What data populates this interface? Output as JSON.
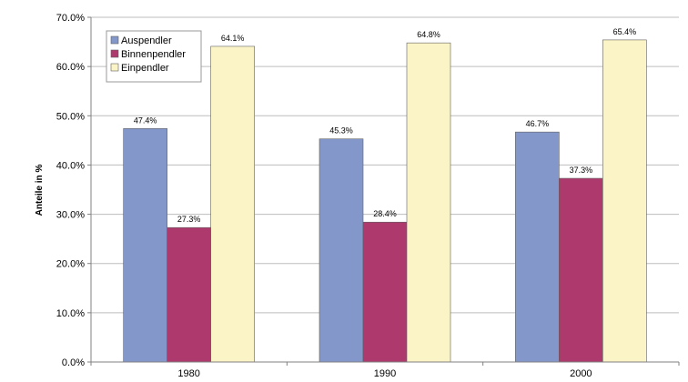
{
  "chart_data": {
    "type": "bar",
    "title": "",
    "xlabel": "",
    "ylabel": "Anteile in %",
    "ylim": [
      0,
      70
    ],
    "y_ticks": [
      "0.0%",
      "10.0%",
      "20.0%",
      "30.0%",
      "40.0%",
      "50.0%",
      "60.0%",
      "70.0%"
    ],
    "categories": [
      "1980",
      "1990",
      "2000"
    ],
    "grid": true,
    "legend_position": "top-left",
    "series": [
      {
        "name": "Auspendler",
        "color": "#8397cb",
        "values": [
          47.4,
          45.3,
          46.7
        ],
        "labels": [
          "47.4%",
          "45.3%",
          "46.7%"
        ]
      },
      {
        "name": "Binnenpendler",
        "color": "#ae3a6d",
        "values": [
          27.3,
          28.4,
          37.3
        ],
        "labels": [
          "27.3%",
          "28.4%",
          "37.3%"
        ]
      },
      {
        "name": "Einpendler",
        "color": "#fbf4c6",
        "values": [
          64.1,
          64.8,
          65.4
        ],
        "labels": [
          "64.1%",
          "64.8%",
          "65.4%"
        ]
      }
    ]
  }
}
